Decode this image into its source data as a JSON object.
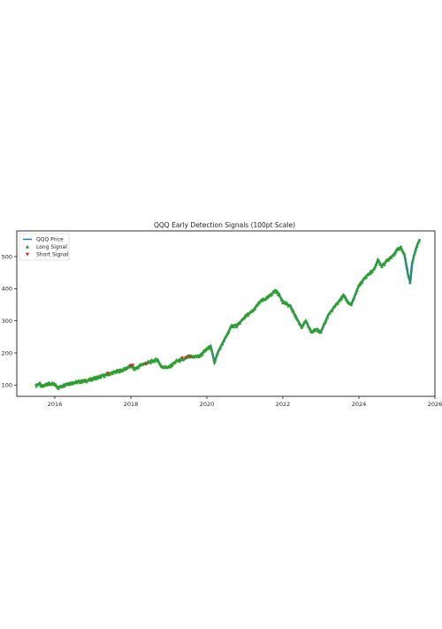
{
  "chart_data": {
    "type": "line",
    "title": "QQQ Early Detection Signals (100pt Scale)",
    "xlabel": "",
    "ylabel": "",
    "xlim": [
      2015.0,
      2026.0
    ],
    "ylim": [
      65,
      580
    ],
    "x_ticks": [
      {
        "value": 2016,
        "label": "2016"
      },
      {
        "value": 2018,
        "label": "2018"
      },
      {
        "value": 2020,
        "label": "2020"
      },
      {
        "value": 2022,
        "label": "2022"
      },
      {
        "value": 2024,
        "label": "2024"
      },
      {
        "value": 2026,
        "label": "2026"
      }
    ],
    "y_ticks": [
      {
        "value": 100,
        "label": "100"
      },
      {
        "value": 200,
        "label": "200"
      },
      {
        "value": 300,
        "label": "300"
      },
      {
        "value": 400,
        "label": "400"
      },
      {
        "value": 500,
        "label": "500"
      }
    ],
    "grid": false,
    "legend_position": "top-left",
    "legend": [
      {
        "name": "QQQ Price",
        "kind": "line",
        "color": "#1f77b4"
      },
      {
        "name": "Long Signal",
        "kind": "triangle-up",
        "color": "#2ca02c"
      },
      {
        "name": "Short Signal",
        "kind": "triangle-down",
        "color": "#d62728"
      }
    ],
    "series": [
      {
        "name": "QQQ Price",
        "color": "#1f77b4",
        "x": [
          2015.5,
          2015.6,
          2015.65,
          2015.7,
          2015.8,
          2016.0,
          2016.1,
          2016.3,
          2016.5,
          2016.7,
          2016.9,
          2017.0,
          2017.3,
          2017.5,
          2017.8,
          2018.0,
          2018.1,
          2018.3,
          2018.5,
          2018.7,
          2018.8,
          2019.0,
          2019.2,
          2019.4,
          2019.5,
          2019.8,
          2020.0,
          2020.1,
          2020.2,
          2020.3,
          2020.5,
          2020.65,
          2020.8,
          2021.0,
          2021.2,
          2021.4,
          2021.6,
          2021.8,
          2021.9,
          2022.0,
          2022.2,
          2022.4,
          2022.5,
          2022.6,
          2022.75,
          2022.9,
          2023.0,
          2023.2,
          2023.4,
          2023.6,
          2023.7,
          2023.8,
          2024.0,
          2024.2,
          2024.4,
          2024.5,
          2024.6,
          2024.8,
          2024.9,
          2025.0,
          2025.1,
          2025.2,
          2025.3,
          2025.35,
          2025.4,
          2025.5,
          2025.6
        ],
        "y": [
          98,
          106,
          95,
          97,
          105,
          102,
          92,
          104,
          108,
          112,
          115,
          120,
          130,
          138,
          148,
          160,
          150,
          165,
          172,
          180,
          158,
          155,
          175,
          180,
          188,
          190,
          212,
          222,
          172,
          205,
          250,
          285,
          285,
          313,
          330,
          360,
          372,
          395,
          382,
          360,
          345,
          300,
          280,
          300,
          265,
          275,
          265,
          320,
          350,
          380,
          360,
          350,
          410,
          440,
          460,
          490,
          470,
          495,
          505,
          520,
          530,
          505,
          440,
          420,
          480,
          525,
          555
        ]
      },
      {
        "name": "Long Signal",
        "color": "#2ca02c",
        "marker": "triangle-up",
        "source": "QQQ Price",
        "density": "dense"
      },
      {
        "name": "Short Signal",
        "color": "#d62728",
        "marker": "triangle-down",
        "x": [
          2017.4,
          2018.0,
          2018.05,
          2018.4,
          2019.35,
          2019.45,
          2019.55
        ],
        "y": [
          137,
          160,
          162,
          166,
          185,
          186,
          188
        ]
      }
    ]
  }
}
